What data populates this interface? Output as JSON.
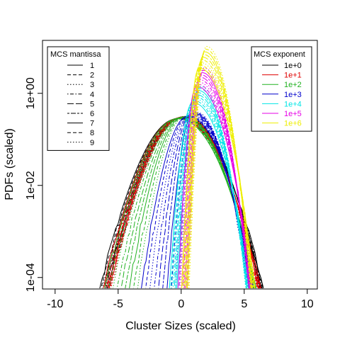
{
  "chart_data": {
    "type": "line",
    "xlabel": "Cluster Sizes (scaled)",
    "ylabel": "PDFs (scaled)",
    "xlim": [
      -11,
      10.8
    ],
    "ylim_log10": [
      -4.25,
      1.15
    ],
    "y_scale": "log",
    "grid": false,
    "x_ticks": [
      -10,
      -5,
      0,
      5,
      10
    ],
    "x_tick_labels": [
      "-10",
      "-5",
      "0",
      "5",
      "10"
    ],
    "y_ticks_log10": [
      -4,
      -2,
      0
    ],
    "y_tick_labels": [
      "1e-04",
      "1e-02",
      "1e+00"
    ],
    "legend_mantissa": {
      "title": "MCS mantissa",
      "position": "top-left",
      "entries": [
        {
          "label": "1",
          "dash": "solid"
        },
        {
          "label": "2",
          "dash": "dashed"
        },
        {
          "label": "3",
          "dash": "dotted"
        },
        {
          "label": "4",
          "dash": "dotdash"
        },
        {
          "label": "5",
          "dash": "longdash"
        },
        {
          "label": "6",
          "dash": "twodash"
        },
        {
          "label": "7",
          "dash": "solid"
        },
        {
          "label": "8",
          "dash": "dashed"
        },
        {
          "label": "9",
          "dash": "dotted"
        }
      ]
    },
    "legend_exponent": {
      "title": "MCS exponent",
      "position": "top-right",
      "entries": [
        {
          "label": "1e+0",
          "color": "#000000"
        },
        {
          "label": "1e+1",
          "color": "#df0000"
        },
        {
          "label": "1e+2",
          "color": "#22b222"
        },
        {
          "label": "1e+3",
          "color": "#0000cc"
        },
        {
          "label": "1e+4",
          "color": "#00e5e5"
        },
        {
          "label": "1e+5",
          "color": "#e600e6"
        },
        {
          "label": "1e+6",
          "color": "#eeee00"
        }
      ]
    },
    "series_groups": [
      {
        "color": "#000000",
        "count": 9,
        "left_x": [
          -6.7,
          -5.9
        ],
        "right_x": [
          6.2,
          6.8
        ],
        "peak_x": 0.0,
        "peak_log10": [
          -0.55,
          -0.5
        ]
      },
      {
        "color": "#df0000",
        "count": 9,
        "left_x": [
          -6.4,
          -5.8
        ],
        "right_x": [
          6.0,
          6.6
        ],
        "peak_x": 0.0,
        "peak_log10": [
          -0.55,
          -0.5
        ]
      },
      {
        "color": "#22b222",
        "count": 9,
        "left_x": [
          -6.3,
          -3.6
        ],
        "right_x": [
          5.7,
          6.2
        ],
        "peak_x": 0.0,
        "peak_log10": [
          -0.55,
          -0.5
        ]
      },
      {
        "color": "#0000cc",
        "count": 9,
        "left_x": [
          -3.3,
          -0.5
        ],
        "right_x": [
          5.2,
          5.9
        ],
        "peak_x": 0.8,
        "peak_log10": [
          -0.5,
          -0.4
        ]
      },
      {
        "color": "#00e5e5",
        "count": 9,
        "left_x": [
          -1.0,
          -0.2
        ],
        "right_x": [
          5.0,
          5.6
        ],
        "peak_x": 1.2,
        "peak_log10": [
          -0.2,
          0.15
        ]
      },
      {
        "color": "#e600e6",
        "count": 9,
        "left_x": [
          -0.3,
          0.5
        ],
        "right_x": [
          5.2,
          5.8
        ],
        "peak_x": 1.5,
        "peak_log10": [
          0.15,
          0.55
        ]
      },
      {
        "color": "#eeee00",
        "count": 9,
        "left_x": [
          0.0,
          0.6
        ],
        "right_x": [
          5.3,
          6.0
        ],
        "peak_x": 1.7,
        "peak_log10": [
          0.55,
          1.02
        ]
      }
    ]
  }
}
